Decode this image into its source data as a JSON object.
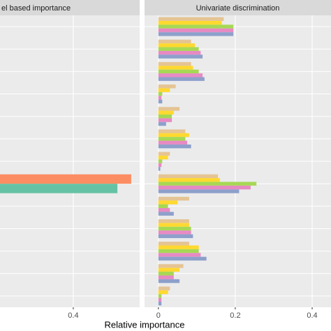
{
  "chart_data": [
    {
      "type": "bar",
      "orientation": "horizontal",
      "title": "el based importance",
      "categories": [
        null,
        null,
        null,
        null,
        null,
        null,
        null,
        null,
        null,
        null,
        null,
        null,
        null
      ],
      "series": [
        {
          "color": "#fc8d62",
          "values": [
            null,
            null,
            null,
            null,
            null,
            null,
            null,
            0.551,
            null,
            null,
            null,
            null,
            null
          ]
        },
        {
          "color": "#66c2a5",
          "values": [
            null,
            null,
            null,
            null,
            null,
            null,
            null,
            0.515,
            null,
            null,
            null,
            null,
            null
          ]
        }
      ],
      "xlim": [
        0.209,
        0.573
      ],
      "xticks": [
        0.4
      ],
      "grid": true
    },
    {
      "type": "bar",
      "orientation": "horizontal",
      "title": "Univariate discrimination",
      "xlabel": "Relative importance",
      "categories": [
        null,
        null,
        null,
        null,
        null,
        null,
        null,
        null,
        null,
        null,
        null,
        null,
        null
      ],
      "series": [
        {
          "color": "#e5c494",
          "values": [
            0.17,
            0.085,
            0.085,
            0.045,
            0.055,
            0.07,
            0.03,
            0.155,
            0.08,
            0.08,
            0.08,
            0.065,
            0.03
          ]
        },
        {
          "color": "#ffd92f",
          "values": [
            0.165,
            0.095,
            0.09,
            0.03,
            0.04,
            0.08,
            0.025,
            0.16,
            0.05,
            0.08,
            0.105,
            0.055,
            0.025
          ]
        },
        {
          "color": "#a6d854",
          "values": [
            0.195,
            0.105,
            0.105,
            0.01,
            0.035,
            0.07,
            0.01,
            0.255,
            0.025,
            0.085,
            0.105,
            0.04,
            0.008
          ]
        },
        {
          "color": "#e78ac3",
          "values": [
            0.195,
            0.11,
            0.115,
            0.008,
            0.035,
            0.075,
            0.008,
            0.24,
            0.03,
            0.085,
            0.11,
            0.04,
            0.008
          ]
        },
        {
          "color": "#8da0cb",
          "values": [
            0.195,
            0.115,
            0.12,
            0.01,
            0.02,
            0.085,
            0.005,
            0.21,
            0.04,
            0.09,
            0.125,
            0.055,
            0.008
          ]
        }
      ],
      "xlim": [
        -0.036,
        0.449
      ],
      "xticks": [
        0.0,
        0.2,
        0.4
      ],
      "grid": true
    }
  ]
}
